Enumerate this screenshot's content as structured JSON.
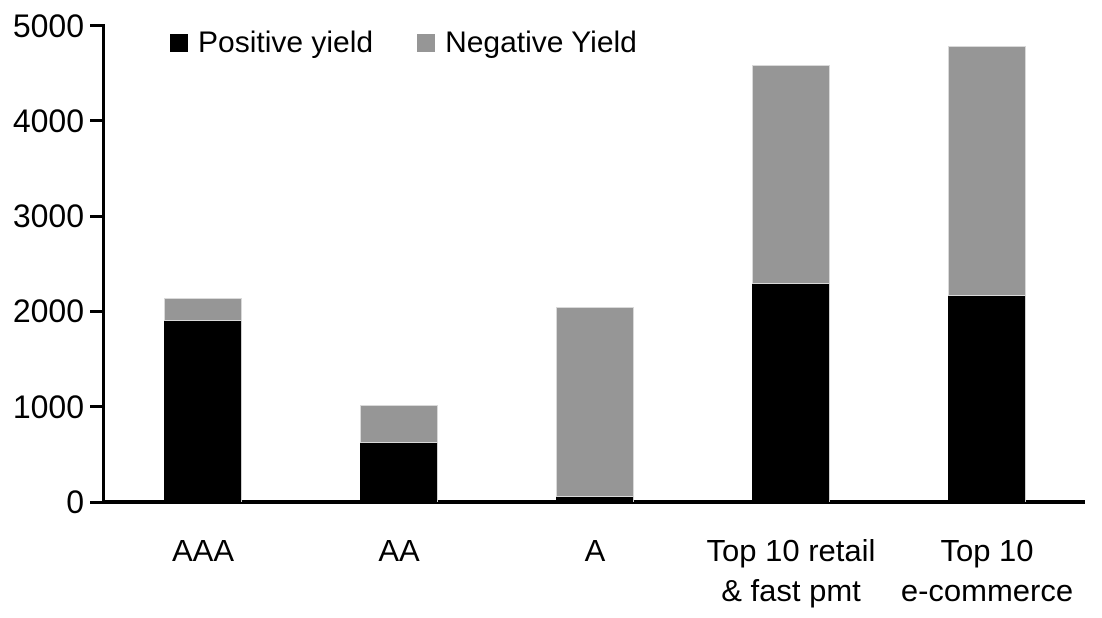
{
  "chart_data": {
    "type": "bar",
    "stacked": true,
    "title": "",
    "categories": [
      "AAA",
      "AA",
      "A",
      "Top 10 retail\n& fast pmt",
      "Top 10\ne-commerce"
    ],
    "series": [
      {
        "name": "Positive yield",
        "color": "#000000",
        "values": [
          1900,
          620,
          50,
          2290,
          2160
        ]
      },
      {
        "name": "Negative Yield",
        "color": "#969696",
        "values": [
          240,
          400,
          2000,
          2300,
          2630
        ]
      }
    ],
    "xlabel": "",
    "ylabel": "",
    "ylim": [
      0,
      5000
    ],
    "yticks": [
      0,
      1000,
      2000,
      3000,
      4000,
      5000
    ],
    "grid": false,
    "legend_position": "top-left",
    "colors": {
      "axis": "#000000",
      "positive_series": "#000000",
      "negative_series": "#969696",
      "bar_border": "#d9d9d9",
      "background": "#ffffff"
    }
  }
}
